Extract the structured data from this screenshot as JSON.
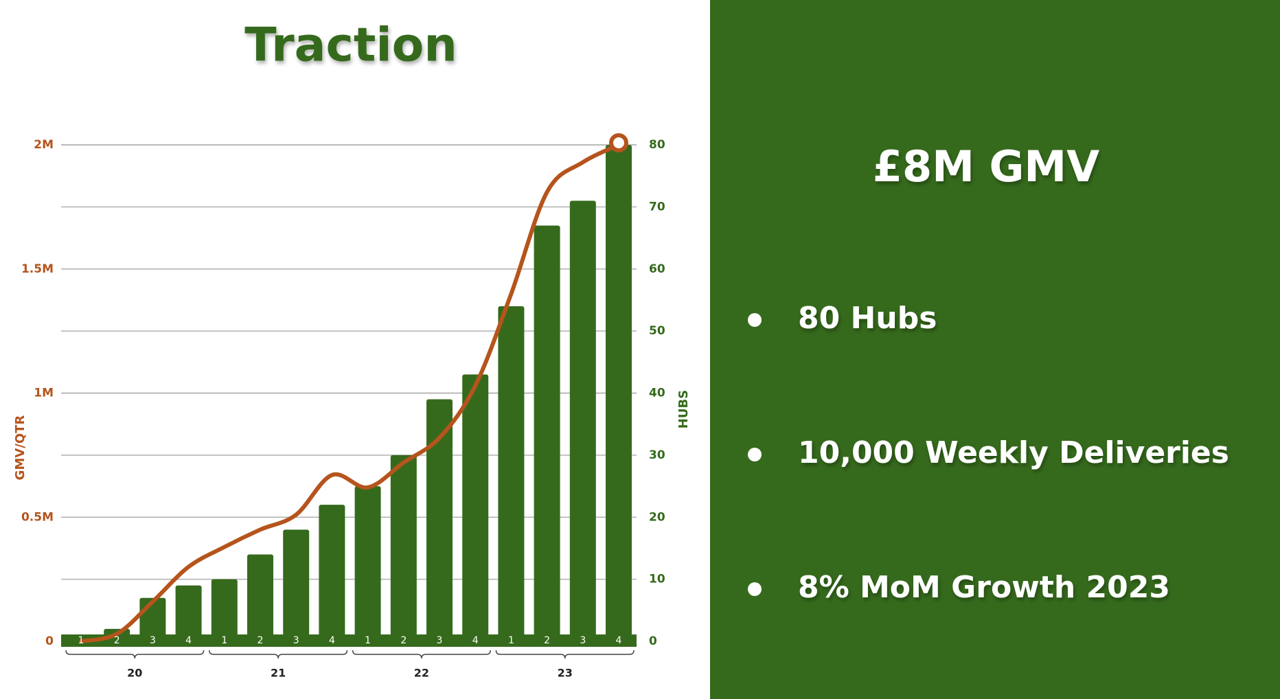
{
  "chart_data": {
    "type": "bar_line",
    "title": "Traction",
    "categories": [
      "1",
      "2",
      "3",
      "4",
      "1",
      "2",
      "3",
      "4",
      "1",
      "2",
      "3",
      "4",
      "1",
      "2",
      "3",
      "4"
    ],
    "group_labels": [
      "20",
      "21",
      "22",
      "23"
    ],
    "series": [
      {
        "type": "bar",
        "axis": "y2",
        "color": "#356a1c",
        "values": [
          0,
          2,
          7,
          9,
          10,
          14,
          18,
          22,
          25,
          30,
          39,
          43,
          54,
          67,
          71,
          80
        ]
      },
      {
        "type": "line",
        "color": "#b5541c",
        "values": [
          0,
          30000,
          160000,
          300000,
          380000,
          450000,
          510000,
          670000,
          620000,
          720000,
          820000,
          1030000,
          1400000,
          1810000,
          1930000,
          2000000
        ]
      }
    ],
    "ylabel": "GMV/QTR",
    "y2label": "HUBS",
    "ylim": [
      0,
      2000000
    ],
    "yticks": [
      0,
      {
        "value": 500000,
        "label": "0.5M"
      },
      {
        "value": 1000000,
        "label": "1M"
      },
      {
        "value": 1500000,
        "label": "1.5M"
      },
      {
        "value": 2000000,
        "label": "2M"
      }
    ],
    "y2lim": [
      0,
      80
    ],
    "y2ticks": [
      0,
      10,
      20,
      30,
      40,
      50,
      60,
      70,
      80
    ],
    "grid": true
  },
  "panel": {
    "heading": "£8M GMV",
    "bullets": [
      "80 Hubs",
      "10,000 Weekly Deliveries",
      "8% MoM Growth 2023"
    ]
  }
}
